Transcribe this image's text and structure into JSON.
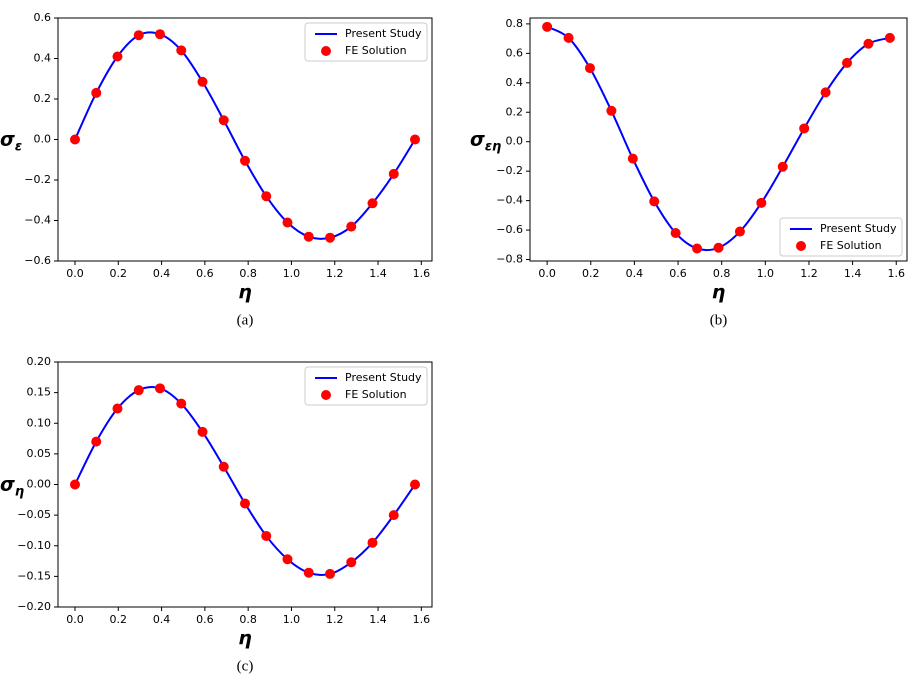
{
  "chart_data": [
    {
      "type": "line",
      "caption": "(a)",
      "xlabel": "η",
      "ylabel": "σ",
      "ylabel_sub": "ε",
      "legend": "upper right",
      "x": [
        0,
        0.0982,
        0.1963,
        0.2945,
        0.3927,
        0.4909,
        0.589,
        0.6872,
        0.7854,
        0.8836,
        0.9817,
        1.0799,
        1.1781,
        1.2763,
        1.3744,
        1.4726,
        1.5708
      ],
      "series": [
        {
          "name": "Present Study",
          "color": "#0000ff",
          "style": "line",
          "values": [
            0,
            0.23,
            0.41,
            0.515,
            0.52,
            0.44,
            0.285,
            0.095,
            -0.105,
            -0.28,
            -0.41,
            -0.48,
            -0.485,
            -0.43,
            -0.315,
            -0.17,
            0
          ]
        },
        {
          "name": "FE Solution",
          "color": "#ff0000",
          "style": "marker",
          "values": [
            0,
            0.23,
            0.41,
            0.515,
            0.52,
            0.44,
            0.285,
            0.095,
            -0.105,
            -0.28,
            -0.41,
            -0.48,
            -0.485,
            -0.43,
            -0.315,
            -0.17,
            0
          ]
        }
      ],
      "xlim": [
        -0.0785,
        1.6493
      ],
      "xticks": [
        {
          "value": 0,
          "label": "0.0"
        },
        0.2,
        0.4,
        0.6,
        0.8,
        {
          "value": 1,
          "label": "1.0"
        },
        1.2,
        1.4,
        1.6
      ],
      "ylim": [
        -0.6,
        0.6
      ],
      "yticks": [
        {
          "value": -0.6,
          "label": "−0.6"
        },
        {
          "value": -0.4,
          "label": "−0.4"
        },
        {
          "value": -0.2,
          "label": "−0.2"
        },
        {
          "value": 0,
          "label": "0.0"
        },
        0.2,
        0.4,
        0.6
      ]
    },
    {
      "type": "line",
      "caption": "(b)",
      "xlabel": "η",
      "ylabel": "σ",
      "ylabel_sub": "εη",
      "legend": "lower right",
      "x": [
        0,
        0.0982,
        0.1963,
        0.2945,
        0.3927,
        0.4909,
        0.589,
        0.6872,
        0.7854,
        0.8836,
        0.9817,
        1.0799,
        1.1781,
        1.2763,
        1.3744,
        1.4726,
        1.5708
      ],
      "series": [
        {
          "name": "Present Study",
          "color": "#0000ff",
          "style": "line",
          "values": [
            0.78,
            0.705,
            0.5,
            0.21,
            -0.115,
            -0.405,
            -0.62,
            -0.725,
            -0.72,
            -0.61,
            -0.415,
            -0.17,
            0.09,
            0.335,
            0.535,
            0.665,
            0.705
          ]
        },
        {
          "name": "FE Solution",
          "color": "#ff0000",
          "style": "marker",
          "values": [
            0.78,
            0.705,
            0.5,
            0.21,
            -0.115,
            -0.405,
            -0.62,
            -0.725,
            -0.72,
            -0.61,
            -0.415,
            -0.17,
            0.09,
            0.335,
            0.535,
            0.665,
            0.705
          ]
        }
      ],
      "xlim": [
        -0.0785,
        1.6493
      ],
      "xticks": [
        {
          "value": 0,
          "label": "0.0"
        },
        0.2,
        0.4,
        0.6,
        0.8,
        {
          "value": 1,
          "label": "1.0"
        },
        1.2,
        1.4,
        1.6
      ],
      "ylim": [
        -0.81,
        0.84
      ],
      "yticks": [
        {
          "value": -0.8,
          "label": "−0.8"
        },
        {
          "value": -0.6,
          "label": "−0.6"
        },
        {
          "value": -0.4,
          "label": "−0.4"
        },
        {
          "value": -0.2,
          "label": "−0.2"
        },
        {
          "value": 0,
          "label": "0.0"
        },
        0.2,
        0.4,
        0.6,
        0.8
      ]
    },
    {
      "type": "line",
      "caption": "(c)",
      "xlabel": "η",
      "ylabel": "σ",
      "ylabel_sub": "η",
      "legend": "upper right",
      "x": [
        0,
        0.0982,
        0.1963,
        0.2945,
        0.3927,
        0.4909,
        0.589,
        0.6872,
        0.7854,
        0.8836,
        0.9817,
        1.0799,
        1.1781,
        1.2763,
        1.3744,
        1.4726,
        1.5708
      ],
      "series": [
        {
          "name": "Present Study",
          "color": "#0000ff",
          "style": "line",
          "values": [
            0,
            0.07,
            0.124,
            0.154,
            0.157,
            0.132,
            0.086,
            0.029,
            -0.031,
            -0.084,
            -0.122,
            -0.144,
            -0.146,
            -0.127,
            -0.095,
            -0.05,
            0
          ]
        },
        {
          "name": "FE Solution",
          "color": "#ff0000",
          "style": "marker",
          "values": [
            0,
            0.07,
            0.124,
            0.154,
            0.157,
            0.132,
            0.086,
            0.029,
            -0.031,
            -0.084,
            -0.122,
            -0.144,
            -0.146,
            -0.127,
            -0.095,
            -0.05,
            0
          ]
        }
      ],
      "xlim": [
        -0.0785,
        1.6493
      ],
      "xticks": [
        {
          "value": 0,
          "label": "0.0"
        },
        0.2,
        0.4,
        0.6,
        0.8,
        {
          "value": 1,
          "label": "1.0"
        },
        1.2,
        1.4,
        1.6
      ],
      "ylim": [
        -0.2,
        0.2
      ],
      "yticks": [
        {
          "value": -0.2,
          "label": "−0.20"
        },
        {
          "value": -0.15,
          "label": "−0.15"
        },
        {
          "value": -0.1,
          "label": "−0.10"
        },
        {
          "value": -0.05,
          "label": "−0.05"
        },
        {
          "value": 0,
          "label": "0.00"
        },
        0.05,
        {
          "value": 0.1,
          "label": "0.10"
        },
        0.15,
        {
          "value": 0.2,
          "label": "0.20"
        }
      ]
    }
  ]
}
